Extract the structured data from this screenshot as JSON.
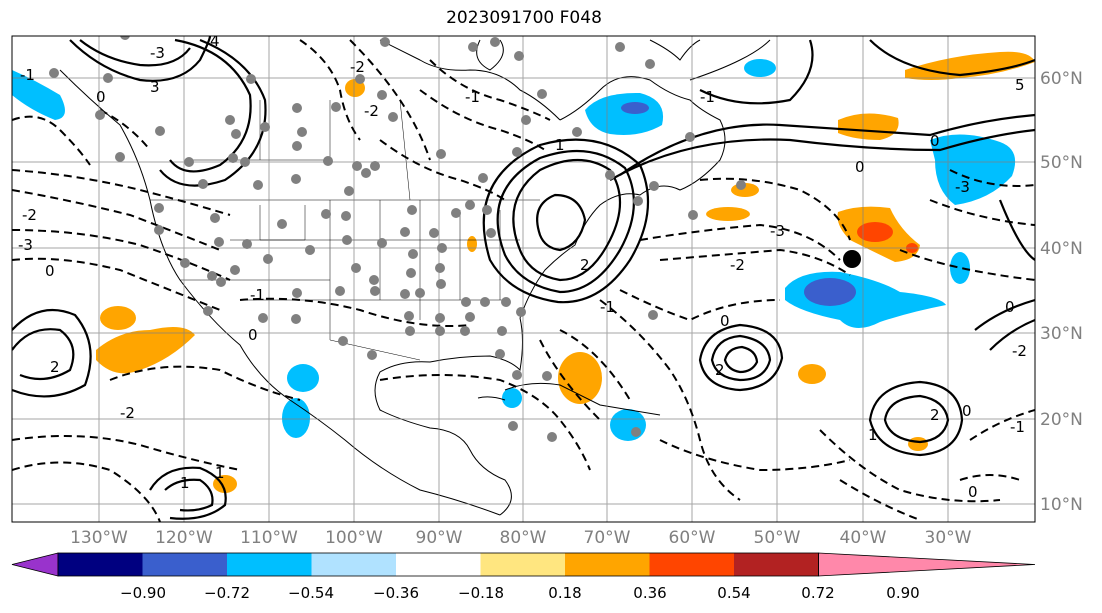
{
  "title": "2023091700 F048",
  "map": {
    "lon_labels": [
      "130°W",
      "120°W",
      "110°W",
      "100°W",
      "90°W",
      "80°W",
      "70°W",
      "60°W",
      "50°W",
      "40°W",
      "30°W"
    ],
    "lat_labels": [
      "60°N",
      "50°N",
      "40°N",
      "30°N",
      "20°N",
      "10°N"
    ],
    "contour_labels": [
      "-1",
      "-2",
      "-3",
      "0",
      "1",
      "2",
      "3",
      "4",
      "5",
      "-1",
      "-2",
      "-3",
      "0",
      "-1",
      "0",
      "-2",
      "-3",
      "0",
      "-1",
      "-2",
      "-3",
      "0",
      "1",
      "2",
      "0",
      "-1",
      "1",
      "2",
      "0",
      "-1",
      "-2",
      "0",
      "2",
      "1",
      "-2",
      "0"
    ],
    "colors": {
      "land_line": "#000000",
      "grid": "#808080",
      "station_dot": "#808080",
      "marker": "#000000"
    }
  },
  "colorbar": {
    "ticks": [
      "−0.90",
      "−0.72",
      "−0.54",
      "−0.36",
      "−0.18",
      "0.18",
      "0.36",
      "0.54",
      "0.72",
      "0.90"
    ],
    "colors": [
      "#9933cc",
      "#000080",
      "#3a5fcd",
      "#00bfff",
      "#b0e2ff",
      "#ffffff",
      "#ffe680",
      "#ffa500",
      "#ff4500",
      "#b22222",
      "#ff88aa"
    ]
  }
}
